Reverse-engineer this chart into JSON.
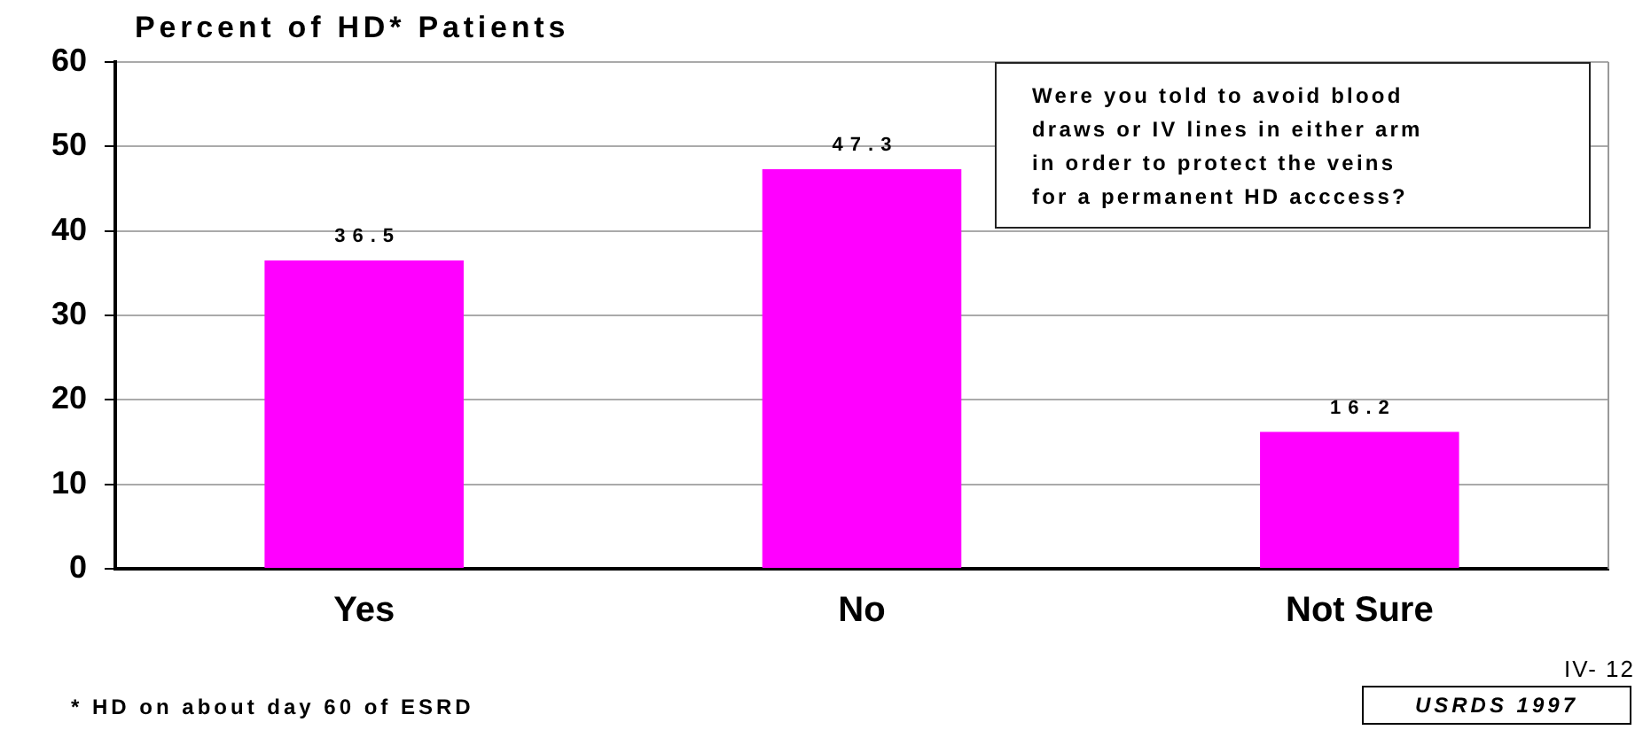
{
  "chart_data": {
    "type": "bar",
    "title": "Percent of HD* Patients",
    "categories": [
      "Yes",
      "No",
      "Not Sure"
    ],
    "values": [
      36.5,
      47.3,
      16.2
    ],
    "color": "#ff00ff",
    "ylim": [
      0,
      60
    ],
    "yticks": [
      0,
      10,
      20,
      30,
      40,
      50,
      60
    ],
    "grid": "y",
    "legend": false,
    "data_labels": true,
    "annotations": [
      "Were you told to avoid blood\ndraws or IV lines in either arm\nin order to protect the veins\nfor a permanent HD acccess?",
      "* HD on about day 60 of ESRD",
      "IV- 12",
      "USRDS 1997"
    ]
  }
}
